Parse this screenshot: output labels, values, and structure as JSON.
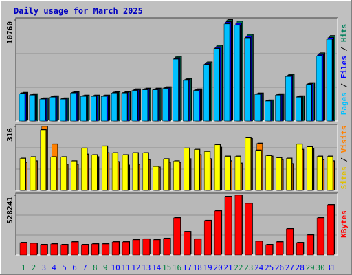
{
  "chart_data": [
    {
      "type": "bar",
      "title": "Daily usage for March 2025",
      "legend_separator": " / ",
      "ylim": [
        0,
        10760
      ],
      "yticks": [
        10760
      ],
      "series": [
        {
          "name": "Pages",
          "color": "#00c0ff",
          "values": [
            2900,
            2760,
            2330,
            2540,
            2330,
            2980,
            2620,
            2620,
            2620,
            2980,
            2980,
            3250,
            3320,
            3320,
            3470,
            6580,
            4320,
            3250,
            6010,
            7710,
            10330,
            10190,
            8850,
            2830,
            2120,
            2760,
            4740,
            2540,
            3890,
            6930,
            8700
          ]
        },
        {
          "name": "Files",
          "color": "#0000ff",
          "values": [
            2960,
            2810,
            2380,
            2600,
            2380,
            3040,
            2680,
            2680,
            2680,
            3040,
            3040,
            3320,
            3390,
            3390,
            3540,
            6710,
            4410,
            3320,
            6130,
            7870,
            10540,
            10400,
            9030,
            2890,
            2170,
            2810,
            4840,
            2600,
            3970,
            7080,
            8880
          ]
        },
        {
          "name": "Hits",
          "color": "#00805c",
          "values": [
            3020,
            2870,
            2430,
            2650,
            2430,
            3100,
            2730,
            2730,
            2730,
            3100,
            3100,
            3390,
            3460,
            3460,
            3610,
            6850,
            4500,
            3390,
            6260,
            8030,
            10760,
            10610,
            9210,
            2950,
            2210,
            2870,
            4940,
            2650,
            4050,
            7220,
            9060
          ]
        }
      ]
    },
    {
      "type": "bar",
      "legend_separator": " / ",
      "ylim": [
        0,
        316
      ],
      "yticks": [
        316
      ],
      "series": [
        {
          "name": "Sites",
          "color": "#ffff00",
          "values": [
            158,
            165,
            299,
            165,
            165,
            145,
            208,
            175,
            218,
            185,
            175,
            185,
            185,
            118,
            155,
            145,
            208,
            202,
            192,
            225,
            168,
            168,
            259,
            198,
            171,
            161,
            158,
            228,
            215,
            168,
            168
          ]
        },
        {
          "name": "Visits",
          "color": "#ff8000",
          "values": [
            138,
            145,
            316,
            228,
            128,
            128,
            178,
            165,
            185,
            141,
            124,
            128,
            151,
            114,
            138,
            138,
            155,
            175,
            155,
            212,
            145,
            134,
            255,
            232,
            168,
            151,
            131,
            202,
            205,
            151,
            145
          ]
        }
      ]
    },
    {
      "type": "bar",
      "ylim": [
        0,
        528241
      ],
      "yticks": [
        528241
      ],
      "categories": [
        "1",
        "2",
        "3",
        "4",
        "5",
        "6",
        "7",
        "8",
        "9",
        "10",
        "11",
        "12",
        "13",
        "14",
        "15",
        "16",
        "17",
        "18",
        "19",
        "20",
        "21",
        "22",
        "23",
        "24",
        "25",
        "26",
        "27",
        "28",
        "29",
        "30",
        "31"
      ],
      "category_colors": [
        "#008040",
        "#008040",
        "#0000ff",
        "#0000ff",
        "#0000ff",
        "#0000ff",
        "#0000ff",
        "#008040",
        "#008040",
        "#0000ff",
        "#0000ff",
        "#0000ff",
        "#0000ff",
        "#0000ff",
        "#008040",
        "#008040",
        "#0000ff",
        "#0000ff",
        "#0000ff",
        "#0000ff",
        "#0000ff",
        "#008040",
        "#008040",
        "#0000ff",
        "#0000ff",
        "#0000ff",
        "#0000ff",
        "#0000ff",
        "#008040",
        "#008040",
        "#0000ff"
      ],
      "series": [
        {
          "name": "KBytes",
          "color": "#ff0000",
          "values": [
            109000,
            103000,
            91000,
            97000,
            91000,
            115000,
            91000,
            97000,
            97000,
            115000,
            115000,
            134000,
            140000,
            134000,
            146000,
            328000,
            206000,
            140000,
            304000,
            389000,
            516000,
            528241,
            455000,
            121000,
            91000,
            115000,
            231000,
            109000,
            176000,
            328000,
            443000
          ]
        }
      ]
    }
  ]
}
